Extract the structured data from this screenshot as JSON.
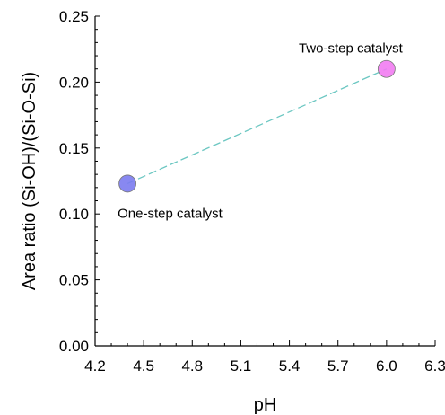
{
  "chart_data": {
    "type": "scatter",
    "xlabel": "pH",
    "ylabel": "Area ratio (Si-OH)/(Si-O-Si)",
    "xlim": [
      4.2,
      6.3
    ],
    "ylim": [
      0.0,
      0.25
    ],
    "xticks": [
      "4.2",
      "4.5",
      "4.8",
      "5.1",
      "5.4",
      "5.7",
      "6.0",
      "6.3"
    ],
    "yticks": [
      "0.00",
      "0.05",
      "0.10",
      "0.15",
      "0.20",
      "0.25"
    ],
    "grid": false,
    "points": [
      {
        "x": 4.4,
        "y": 0.123,
        "label": "One-step catalyst",
        "color": "#7b7bf0"
      },
      {
        "x": 6.0,
        "y": 0.21,
        "label": "Two-step catalyst",
        "color": "#f27cf2"
      }
    ],
    "line_color": "#6cc7c2"
  }
}
